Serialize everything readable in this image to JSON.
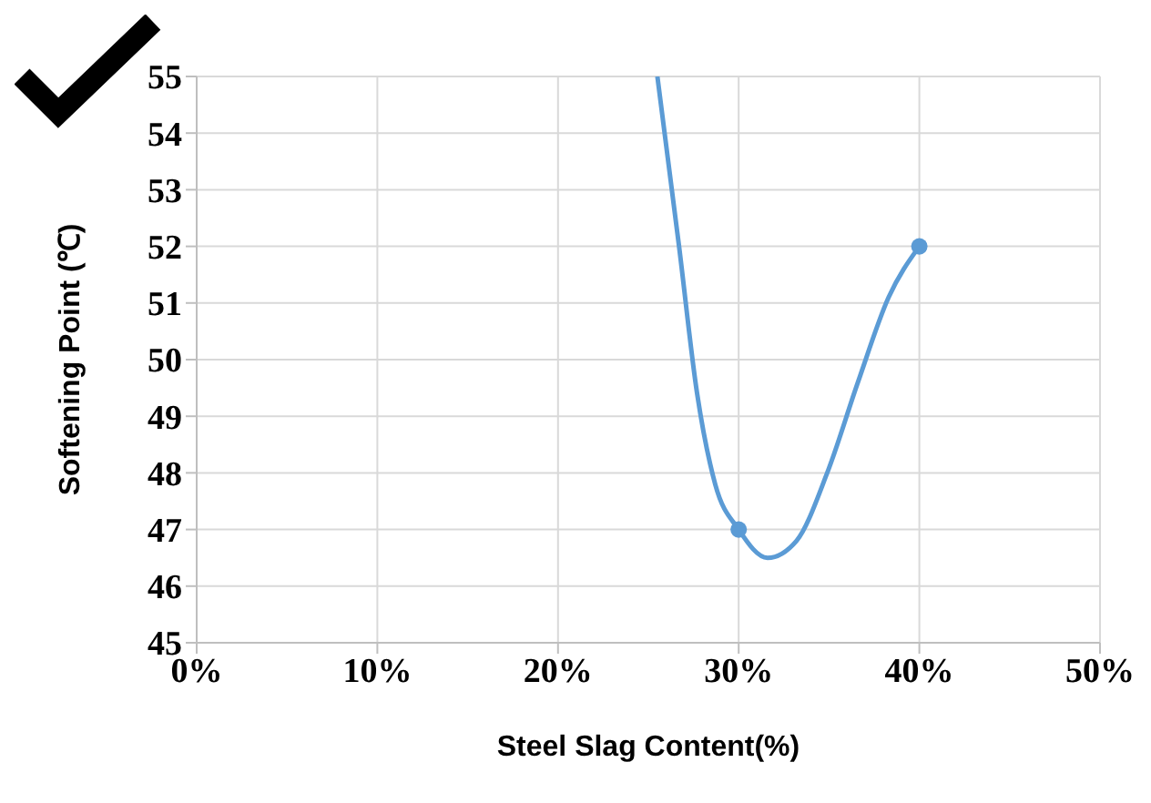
{
  "chart_data": {
    "type": "line",
    "xlabel": "Steel Slag Content(%)",
    "ylabel": "Softening Point (℃)",
    "xlim": [
      0,
      50
    ],
    "xticks": [
      {
        "value": 0,
        "label": "0%"
      },
      {
        "value": 10,
        "label": "10%"
      },
      {
        "value": 20,
        "label": "20%"
      },
      {
        "value": 30,
        "label": "30%"
      },
      {
        "value": 40,
        "label": "40%"
      },
      {
        "value": 50,
        "label": "50%"
      }
    ],
    "ylim": [
      45,
      55
    ],
    "yticks": [
      45,
      46,
      47,
      48,
      49,
      50,
      51,
      52,
      53,
      54,
      55
    ],
    "grid": true,
    "series": [
      {
        "color": "#5b9bd5",
        "marker": "none",
        "x": [
          25.5,
          26.7,
          27.7,
          28.7,
          30,
          31.6,
          33.2,
          34.9,
          36.6,
          38.3,
          40
        ],
        "values": [
          55,
          52,
          49.4,
          47.8,
          47,
          46.5,
          46.8,
          48,
          49.6,
          51.1,
          52
        ]
      },
      {
        "type": "scatter",
        "color": "#5b9bd5",
        "marker": "circle",
        "x": [
          30,
          40
        ],
        "values": [
          47,
          52
        ]
      }
    ]
  }
}
